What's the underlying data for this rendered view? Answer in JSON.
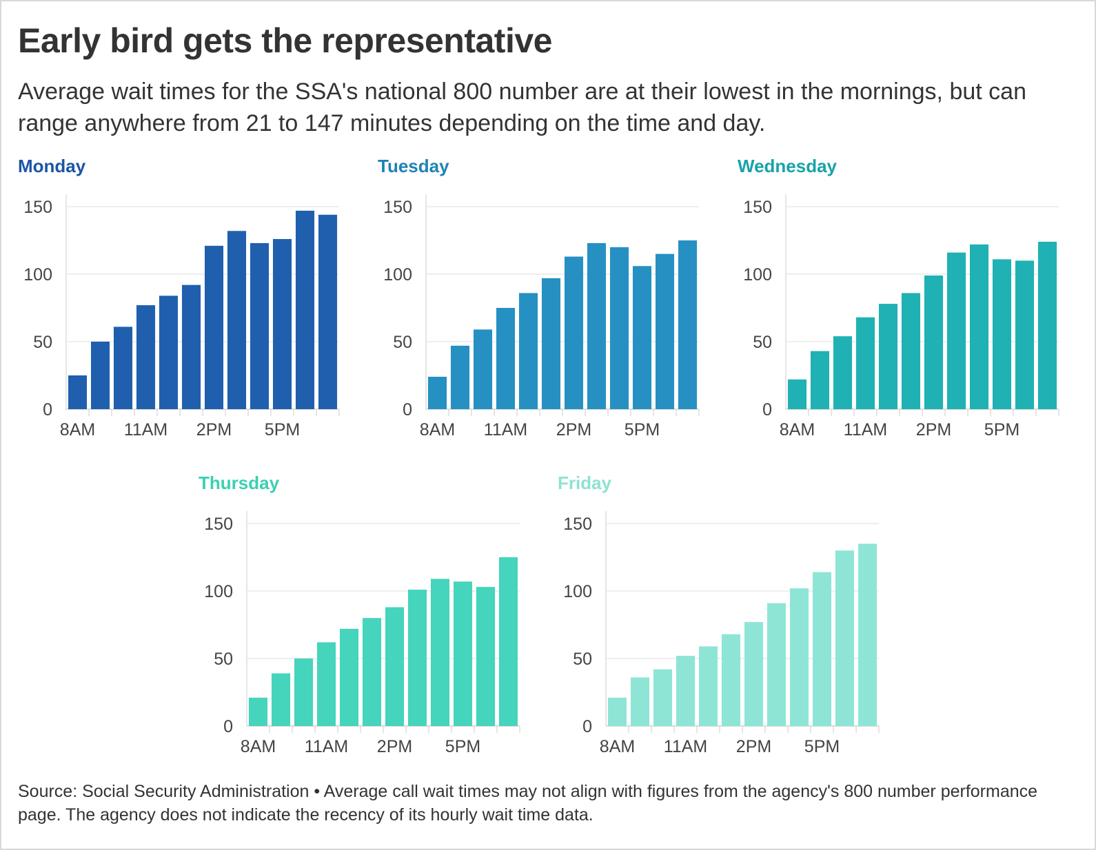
{
  "title": "Early bird gets the representative",
  "subtitle": "Average wait times for the SSA's national 800 number are at their lowest in the mornings, but can range anywhere from 21 to 147 minutes depending on the time and day.",
  "source": "Source: Social Security Administration • Average call wait times may not align with figures from the agency's 800 number performance page. The agency does not indicate the recency of its hourly wait time data.",
  "chart_data": [
    {
      "type": "bar",
      "title": "Monday",
      "color": "#1f5fae",
      "categories": [
        "8AM",
        "9AM",
        "10AM",
        "11AM",
        "12PM",
        "1PM",
        "2PM",
        "3PM",
        "4PM",
        "5PM",
        "6PM",
        "7PM"
      ],
      "values": [
        25,
        50,
        61,
        77,
        84,
        92,
        121,
        132,
        123,
        126,
        147,
        144
      ],
      "x_tick_labels": [
        "8AM",
        "11AM",
        "2PM",
        "5PM"
      ],
      "y_ticks": [
        0,
        50,
        100,
        150
      ],
      "ylim": [
        0,
        160
      ],
      "grid": true
    },
    {
      "type": "bar",
      "title": "Tuesday",
      "color": "#2690c2",
      "categories": [
        "8AM",
        "9AM",
        "10AM",
        "11AM",
        "12PM",
        "1PM",
        "2PM",
        "3PM",
        "4PM",
        "5PM",
        "6PM",
        "7PM"
      ],
      "values": [
        24,
        47,
        59,
        75,
        86,
        97,
        113,
        123,
        120,
        106,
        115,
        125
      ],
      "x_tick_labels": [
        "8AM",
        "11AM",
        "2PM",
        "5PM"
      ],
      "y_ticks": [
        0,
        50,
        100,
        150
      ],
      "ylim": [
        0,
        160
      ],
      "grid": true
    },
    {
      "type": "bar",
      "title": "Wednesday",
      "color": "#1fb1b3",
      "categories": [
        "8AM",
        "9AM",
        "10AM",
        "11AM",
        "12PM",
        "1PM",
        "2PM",
        "3PM",
        "4PM",
        "5PM",
        "6PM",
        "7PM"
      ],
      "values": [
        22,
        43,
        54,
        68,
        78,
        86,
        99,
        116,
        122,
        111,
        110,
        124
      ],
      "x_tick_labels": [
        "8AM",
        "11AM",
        "2PM",
        "5PM"
      ],
      "y_ticks": [
        0,
        50,
        100,
        150
      ],
      "ylim": [
        0,
        160
      ],
      "grid": true
    },
    {
      "type": "bar",
      "title": "Thursday",
      "color": "#45d4bc",
      "categories": [
        "8AM",
        "9AM",
        "10AM",
        "11AM",
        "12PM",
        "1PM",
        "2PM",
        "3PM",
        "4PM",
        "5PM",
        "6PM",
        "7PM"
      ],
      "values": [
        21,
        39,
        50,
        62,
        72,
        80,
        88,
        101,
        109,
        107,
        103,
        125
      ],
      "x_tick_labels": [
        "8AM",
        "11AM",
        "2PM",
        "5PM"
      ],
      "y_ticks": [
        0,
        50,
        100,
        150
      ],
      "ylim": [
        0,
        160
      ],
      "grid": true
    },
    {
      "type": "bar",
      "title": "Friday",
      "color": "#8ee5d6",
      "categories": [
        "8AM",
        "9AM",
        "10AM",
        "11AM",
        "12PM",
        "1PM",
        "2PM",
        "3PM",
        "4PM",
        "5PM",
        "6PM",
        "7PM"
      ],
      "values": [
        21,
        36,
        42,
        52,
        59,
        68,
        77,
        91,
        102,
        114,
        130,
        135
      ],
      "x_tick_labels": [
        "8AM",
        "11AM",
        "2PM",
        "5PM"
      ],
      "y_ticks": [
        0,
        50,
        100,
        150
      ],
      "ylim": [
        0,
        160
      ],
      "grid": true
    }
  ]
}
